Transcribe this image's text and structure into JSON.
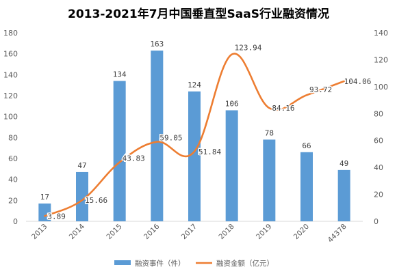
{
  "chart_data": {
    "type": "bar",
    "title": "2013-2021年7月中国垂直型SaaS行业融资情况",
    "categories": [
      "2013",
      "2014",
      "2015",
      "2016",
      "2017",
      "2018",
      "2019",
      "2020",
      "44378"
    ],
    "ylim": [
      0,
      180
    ],
    "y2lim": [
      0,
      140
    ],
    "yticks": [
      "0",
      "20",
      "40",
      "60",
      "80",
      "100",
      "120",
      "140",
      "160",
      "180"
    ],
    "y2ticks": [
      "0",
      "20",
      "40",
      "60",
      "80",
      "100",
      "120",
      "140"
    ],
    "grid": false,
    "legend_position": "bottom",
    "series": [
      {
        "name": "融资事件（件）",
        "type": "bar",
        "axis": "left",
        "color": "#5B9BD5",
        "values": [
          17,
          47,
          134,
          163,
          124,
          106,
          78,
          66,
          49
        ],
        "labels": [
          "17",
          "47",
          "134",
          "163",
          "124",
          "106",
          "78",
          "66",
          "49"
        ]
      },
      {
        "name": "融资金额（亿元）",
        "type": "line",
        "axis": "right",
        "smooth": true,
        "color": "#ED7D31",
        "values": [
          3.89,
          15.66,
          43.83,
          59.05,
          51.84,
          123.94,
          84.16,
          93.72,
          104.06
        ],
        "labels": [
          "3.89",
          "15.66",
          "43.83",
          "59.05",
          "51.84",
          "123.94",
          "84.16",
          "93.72",
          "104.06"
        ]
      }
    ]
  }
}
